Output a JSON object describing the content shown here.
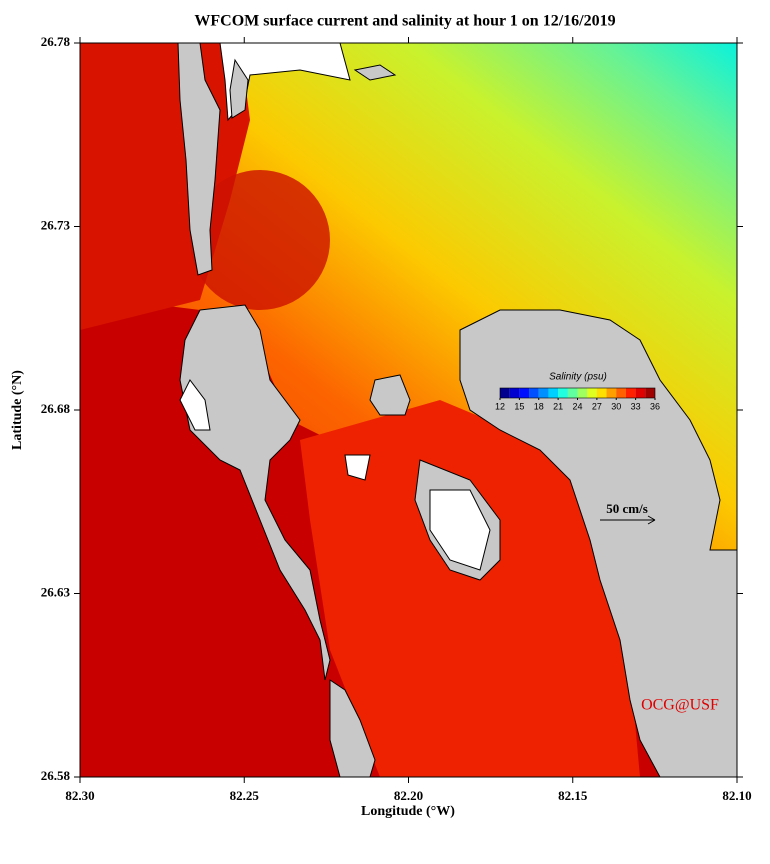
{
  "chart_data": {
    "type": "map",
    "title": "WFCOM surface current and salinity at hour 1 on 12/16/2019",
    "x_label": "Longitude (°W)",
    "y_label": "Latitude (°N)",
    "xlim": [
      82.3,
      82.1
    ],
    "ylim": [
      26.58,
      26.78
    ],
    "xticks": [
      {
        "value": 82.3,
        "label": "82.30"
      },
      {
        "value": 82.25,
        "label": "82.25"
      },
      {
        "value": 82.2,
        "label": "82.20"
      },
      {
        "value": 82.15,
        "label": "82.15"
      },
      {
        "value": 82.1,
        "label": "82.10"
      }
    ],
    "yticks": [
      26.78,
      26.73,
      26.68,
      26.63,
      26.58
    ],
    "colorbar": {
      "title": "Salinity (psu)",
      "lim": [
        12,
        36
      ],
      "ticks": [
        12,
        15,
        18,
        21,
        24,
        27,
        30,
        33,
        36
      ],
      "colors": [
        "#00008f",
        "#0000cf",
        "#0010ff",
        "#0050ff",
        "#0090ff",
        "#00d0ff",
        "#20ffdf",
        "#60ff9f",
        "#a0ff60",
        "#dfff20",
        "#ffdf00",
        "#ff9f00",
        "#ff6000",
        "#ff2000",
        "#df0000",
        "#9f0000"
      ]
    },
    "scale_label": "50 cm/s",
    "credit": "OCG@USF"
  }
}
